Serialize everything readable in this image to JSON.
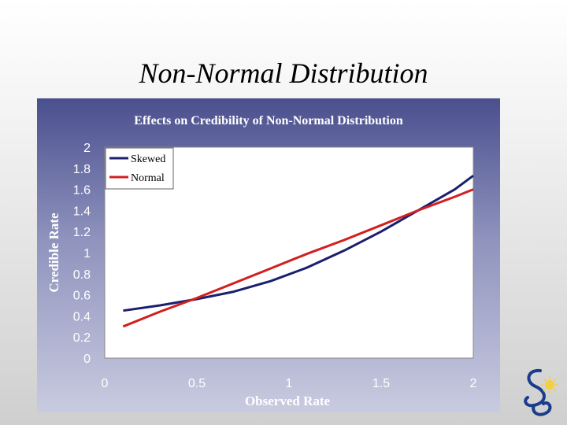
{
  "slide": {
    "title": "Non-Normal Distribution"
  },
  "colors": {
    "skewed": "#1a1f6e",
    "normal": "#d21f1f"
  },
  "chart_data": {
    "type": "line",
    "title": "Effects on Credibility of Non-Normal Distribution",
    "xlabel": "Observed Rate",
    "ylabel": "Credible Rate",
    "xlim": [
      0,
      2
    ],
    "ylim": [
      0,
      2
    ],
    "x_ticks": [
      "0",
      "0.5",
      "1",
      "1.5",
      "2"
    ],
    "y_ticks": [
      "0",
      "0.2",
      "0.4",
      "0.6",
      "0.8",
      "1",
      "1.2",
      "1.4",
      "1.6",
      "1.8",
      "2"
    ],
    "legend_position": "top-left",
    "grid": false,
    "series": [
      {
        "name": "Skewed",
        "color": "#1a1f6e",
        "x": [
          0.1,
          0.3,
          0.5,
          0.7,
          0.9,
          1.1,
          1.3,
          1.5,
          1.7,
          1.9,
          2.0
        ],
        "y": [
          0.45,
          0.5,
          0.56,
          0.63,
          0.73,
          0.86,
          1.02,
          1.2,
          1.4,
          1.6,
          1.73
        ]
      },
      {
        "name": "Normal",
        "color": "#d21f1f",
        "x": [
          0.1,
          0.3,
          0.5,
          0.7,
          0.9,
          1.1,
          1.3,
          1.5,
          1.7,
          1.9,
          2.0
        ],
        "y": [
          0.3,
          0.44,
          0.57,
          0.71,
          0.85,
          0.99,
          1.12,
          1.26,
          1.4,
          1.53,
          1.6
        ]
      }
    ]
  }
}
